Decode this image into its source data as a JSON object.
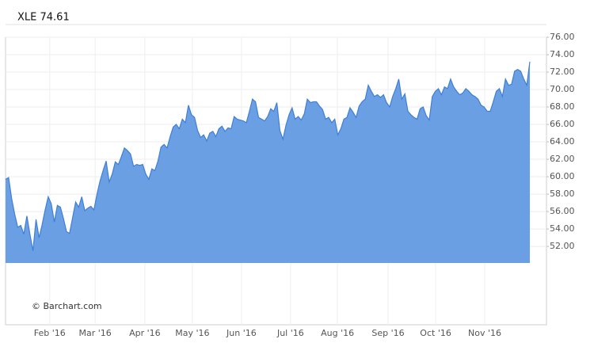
{
  "chart_data": {
    "type": "area",
    "title": "XLE 74.61",
    "credit": "© Barchart.com",
    "color": "#6a9fe3",
    "line_color": "#3f7fd6",
    "grid": true,
    "values": [
      59.7,
      59.9,
      57.5,
      55.7,
      54.2,
      54.4,
      53.4,
      55.5,
      53.4,
      51.5,
      55.1,
      53,
      54.5,
      56.2,
      57.7,
      56.9,
      54.8,
      56.7,
      56.5,
      55.2,
      53.7,
      53.5,
      55.3,
      57.1,
      56.5,
      57.7,
      56.1,
      56.4,
      56.6,
      56.2,
      58,
      59.5,
      60.7,
      61.8,
      59.4,
      60.3,
      61.7,
      61.4,
      62.3,
      63.3,
      63,
      62.6,
      61.2,
      61.4,
      61.3,
      61.4,
      60.3,
      59.7,
      60.9,
      60.7,
      61.8,
      63.4,
      63.7,
      63.3,
      64.6,
      65.7,
      66,
      65.5,
      66.6,
      66.2,
      68.2,
      67.1,
      66.8,
      65.3,
      64.5,
      64.8,
      64.1,
      65,
      65.2,
      64.6,
      65.5,
      65.8,
      65.2,
      65.6,
      65.5,
      66.9,
      66.6,
      66.5,
      66.4,
      66.2,
      67.5,
      68.9,
      68.6,
      66.8,
      66.6,
      66.4,
      66.9,
      67.8,
      67.5,
      68.5,
      65.3,
      64.3,
      65.9,
      67.1,
      67.9,
      66.6,
      66.9,
      66.5,
      67.2,
      68.9,
      68.5,
      68.6,
      68.6,
      68.1,
      67.7,
      66.6,
      66.8,
      66.2,
      66.6,
      64.8,
      65.5,
      66.6,
      66.8,
      67.9,
      67.4,
      66.8,
      68.1,
      68.6,
      68.9,
      70.5,
      69.8,
      69.2,
      69.4,
      69.1,
      69.4,
      68.5,
      68,
      69.2,
      70.1,
      71.2,
      68.9,
      69.5,
      67.5,
      67.1,
      66.8,
      66.6,
      67.8,
      68,
      67,
      66.5,
      69.2,
      69.8,
      70.1,
      69.4,
      70.3,
      70.1,
      71.2,
      70.3,
      69.8,
      69.4,
      69.6,
      70.1,
      69.8,
      69.4,
      69.2,
      68.9,
      68.2,
      68,
      67.5,
      67.5,
      68.6,
      69.8,
      70.1,
      69.2,
      71.2,
      70.5,
      70.6,
      72.1,
      72.3,
      72.1,
      71.2,
      70.5,
      73.2
    ],
    "xlim": [
      0,
      172
    ],
    "xticks": [
      {
        "value": 14.5,
        "label": "Feb '16"
      },
      {
        "value": 29.4,
        "label": "Mar '16"
      },
      {
        "value": 45.7,
        "label": "Apr '16"
      },
      {
        "value": 61.3,
        "label": "May '16"
      },
      {
        "value": 77.4,
        "label": "Jun '16"
      },
      {
        "value": 93.5,
        "label": "Jul '16"
      },
      {
        "value": 108.9,
        "label": "Aug '16"
      },
      {
        "value": 125.5,
        "label": "Sep '16"
      },
      {
        "value": 141.1,
        "label": "Oct '16"
      },
      {
        "value": 157.2,
        "label": "Nov '16"
      }
    ],
    "ylim": [
      50.1,
      76
    ],
    "yticks": [
      {
        "value": 52,
        "label": "52.00"
      },
      {
        "value": 54,
        "label": "54.00"
      },
      {
        "value": 56,
        "label": "56.00"
      },
      {
        "value": 58,
        "label": "58.00"
      },
      {
        "value": 60,
        "label": "60.00"
      },
      {
        "value": 62,
        "label": "62.00"
      },
      {
        "value": 64,
        "label": "64.00"
      },
      {
        "value": 66,
        "label": "66.00"
      },
      {
        "value": 68,
        "label": "68.00"
      },
      {
        "value": 70,
        "label": "70.00"
      },
      {
        "value": 72,
        "label": "72.00"
      },
      {
        "value": 74,
        "label": "74.00"
      },
      {
        "value": 76,
        "label": "76.00"
      }
    ]
  }
}
